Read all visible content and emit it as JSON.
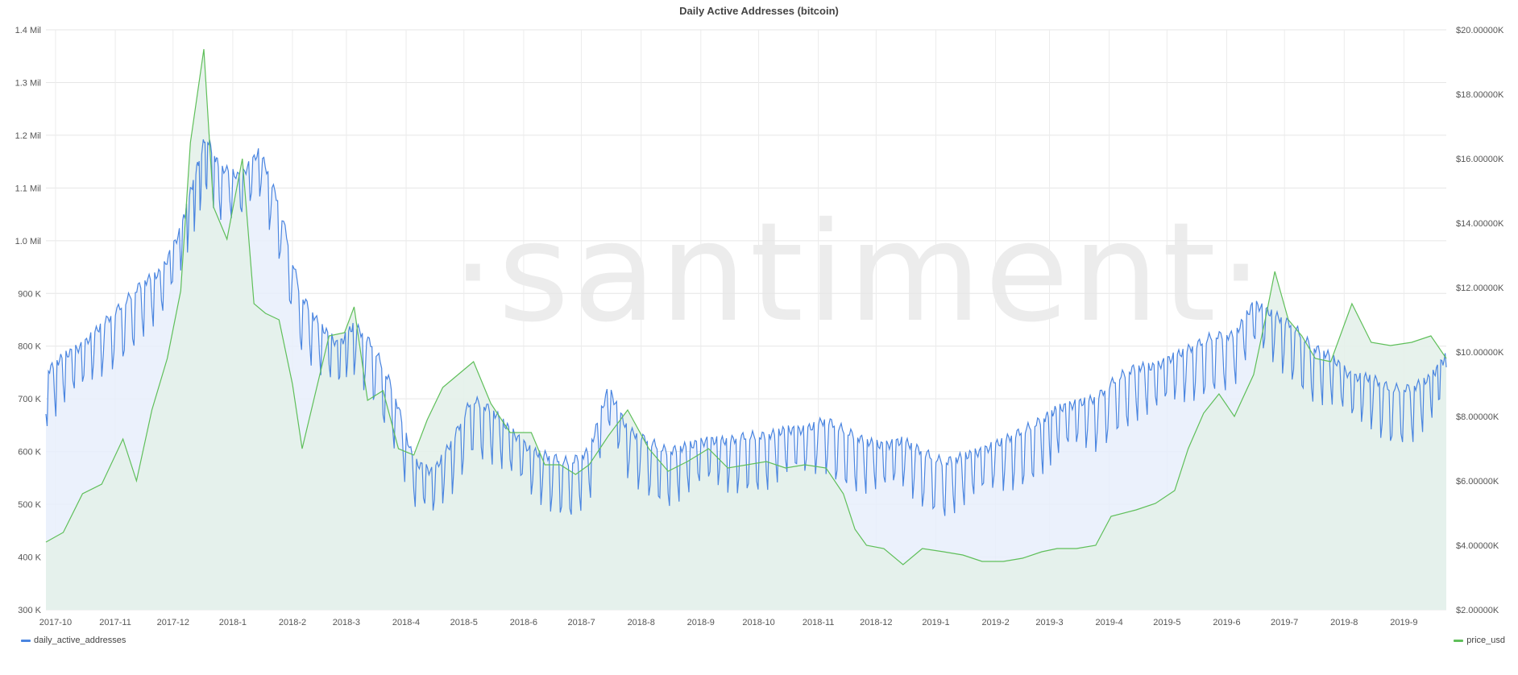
{
  "title": "Daily Active Addresses (bitcoin)",
  "watermark": "·santiment·",
  "legend": {
    "left": {
      "name": "daily_active_addresses",
      "color": "#4a85e0"
    },
    "right": {
      "name": "price_usd",
      "color": "#5fbf5a"
    }
  },
  "chart_data": {
    "type": "line",
    "x_axis": {
      "type": "date",
      "start": "2017-09-26",
      "end": "2019-09-23",
      "tick_labels": [
        "2017-10",
        "2017-11",
        "2017-12",
        "2018-1",
        "2018-2",
        "2018-3",
        "2018-4",
        "2018-5",
        "2018-6",
        "2018-7",
        "2018-8",
        "2018-9",
        "2018-10",
        "2018-11",
        "2018-12",
        "2019-1",
        "2019-2",
        "2019-3",
        "2019-4",
        "2019-5",
        "2019-6",
        "2019-7",
        "2019-8",
        "2019-9"
      ]
    },
    "y_left": {
      "ylim": [
        300000,
        1400000
      ],
      "tick_labels": [
        "300 K",
        "400 K",
        "500 K",
        "600 K",
        "700 K",
        "800 K",
        "900 K",
        "1.0 Mil",
        "1.1 Mil",
        "1.2 Mil",
        "1.3 Mil",
        "1.4 Mil"
      ]
    },
    "y_right": {
      "ylim": [
        2000,
        20000
      ],
      "tick_labels": [
        "$2.00000K",
        "$4.00000K",
        "$6.00000K",
        "$8.00000K",
        "$10.00000K",
        "$12.00000K",
        "$14.00000K",
        "$16.00000K",
        "$18.00000K",
        "$20.00000K"
      ]
    },
    "grid": true,
    "legend_placement": "bottom",
    "series": [
      {
        "name": "daily_active_addresses",
        "axis": "left",
        "color": "#4a85e0",
        "fill": "#e8effc",
        "x": [
          "2017-09-26",
          "2017-10-05",
          "2017-10-15",
          "2017-10-25",
          "2017-11-05",
          "2017-11-15",
          "2017-11-25",
          "2017-12-05",
          "2017-12-12",
          "2017-12-18",
          "2017-12-25",
          "2018-01-05",
          "2018-01-15",
          "2018-01-25",
          "2018-02-05",
          "2018-02-15",
          "2018-02-25",
          "2018-03-05",
          "2018-03-15",
          "2018-03-25",
          "2018-04-05",
          "2018-04-15",
          "2018-04-25",
          "2018-05-05",
          "2018-05-15",
          "2018-05-25",
          "2018-06-05",
          "2018-06-15",
          "2018-06-25",
          "2018-07-05",
          "2018-07-15",
          "2018-07-25",
          "2018-08-05",
          "2018-08-15",
          "2018-08-25",
          "2018-09-05",
          "2018-09-15",
          "2018-09-25",
          "2018-10-05",
          "2018-10-15",
          "2018-10-25",
          "2018-11-05",
          "2018-11-15",
          "2018-11-25",
          "2018-12-05",
          "2018-12-15",
          "2018-12-25",
          "2019-01-05",
          "2019-01-15",
          "2019-01-25",
          "2019-02-05",
          "2019-02-15",
          "2019-02-25",
          "2019-03-05",
          "2019-03-15",
          "2019-03-25",
          "2019-04-05",
          "2019-04-15",
          "2019-04-25",
          "2019-05-05",
          "2019-05-15",
          "2019-05-25",
          "2019-06-05",
          "2019-06-15",
          "2019-06-25",
          "2019-07-05",
          "2019-07-15",
          "2019-07-25",
          "2019-08-05",
          "2019-08-15",
          "2019-08-25",
          "2019-09-05",
          "2019-09-15",
          "2019-09-23"
        ],
        "values": [
          730000,
          760000,
          780000,
          820000,
          860000,
          900000,
          920000,
          1000000,
          1100000,
          1180000,
          1120000,
          1100000,
          1150000,
          1050000,
          880000,
          820000,
          780000,
          820000,
          780000,
          700000,
          560000,
          540000,
          600000,
          680000,
          660000,
          620000,
          580000,
          570000,
          560000,
          580000,
          700000,
          620000,
          600000,
          580000,
          590000,
          600000,
          600000,
          610000,
          610000,
          620000,
          620000,
          640000,
          620000,
          600000,
          590000,
          600000,
          580000,
          560000,
          570000,
          580000,
          600000,
          620000,
          640000,
          660000,
          670000,
          680000,
          720000,
          740000,
          740000,
          760000,
          780000,
          800000,
          800000,
          860000,
          840000,
          820000,
          780000,
          760000,
          720000,
          720000,
          700000,
          700000,
          720000,
          760000
        ]
      },
      {
        "name": "price_usd",
        "axis": "right",
        "color": "#5fbf5a",
        "fill": "#e4f1ea",
        "x": [
          "2017-09-26",
          "2017-10-05",
          "2017-10-15",
          "2017-10-25",
          "2017-11-05",
          "2017-11-12",
          "2017-11-20",
          "2017-11-28",
          "2017-12-05",
          "2017-12-10",
          "2017-12-17",
          "2017-12-22",
          "2017-12-29",
          "2018-01-06",
          "2018-01-12",
          "2018-01-18",
          "2018-01-25",
          "2018-02-01",
          "2018-02-06",
          "2018-02-12",
          "2018-02-20",
          "2018-02-28",
          "2018-03-05",
          "2018-03-12",
          "2018-03-20",
          "2018-03-28",
          "2018-04-05",
          "2018-04-12",
          "2018-04-20",
          "2018-04-28",
          "2018-05-06",
          "2018-05-15",
          "2018-05-25",
          "2018-06-05",
          "2018-06-12",
          "2018-06-20",
          "2018-06-28",
          "2018-07-05",
          "2018-07-15",
          "2018-07-25",
          "2018-08-05",
          "2018-08-15",
          "2018-08-25",
          "2018-09-05",
          "2018-09-15",
          "2018-09-25",
          "2018-10-05",
          "2018-10-15",
          "2018-10-25",
          "2018-11-05",
          "2018-11-14",
          "2018-11-20",
          "2018-11-26",
          "2018-12-05",
          "2018-12-15",
          "2018-12-25",
          "2019-01-05",
          "2019-01-15",
          "2019-01-25",
          "2019-02-05",
          "2019-02-15",
          "2019-02-25",
          "2019-03-05",
          "2019-03-15",
          "2019-03-25",
          "2019-04-02",
          "2019-04-15",
          "2019-04-25",
          "2019-05-05",
          "2019-05-12",
          "2019-05-20",
          "2019-05-28",
          "2019-06-05",
          "2019-06-15",
          "2019-06-22",
          "2019-06-26",
          "2019-07-03",
          "2019-07-10",
          "2019-07-17",
          "2019-07-25",
          "2019-08-05",
          "2019-08-15",
          "2019-08-25",
          "2019-09-05",
          "2019-09-15",
          "2019-09-23"
        ],
        "values": [
          4100,
          4400,
          5600,
          5900,
          7300,
          6000,
          8200,
          9800,
          11900,
          16500,
          19400,
          14500,
          13500,
          16000,
          11500,
          11200,
          11000,
          9000,
          7000,
          8500,
          10500,
          10600,
          11400,
          8500,
          8800,
          7000,
          6800,
          7900,
          8900,
          9300,
          9700,
          8400,
          7500,
          7500,
          6500,
          6500,
          6200,
          6500,
          7400,
          8200,
          7000,
          6300,
          6600,
          7000,
          6400,
          6500,
          6600,
          6400,
          6500,
          6400,
          5600,
          4500,
          4000,
          3900,
          3400,
          3900,
          3800,
          3700,
          3500,
          3500,
          3600,
          3800,
          3900,
          3900,
          4000,
          4900,
          5100,
          5300,
          5700,
          7000,
          8100,
          8700,
          8000,
          9300,
          11300,
          12500,
          11000,
          10500,
          9800,
          9700,
          11500,
          10300,
          10200,
          10300,
          10500,
          9800
        ]
      }
    ]
  }
}
